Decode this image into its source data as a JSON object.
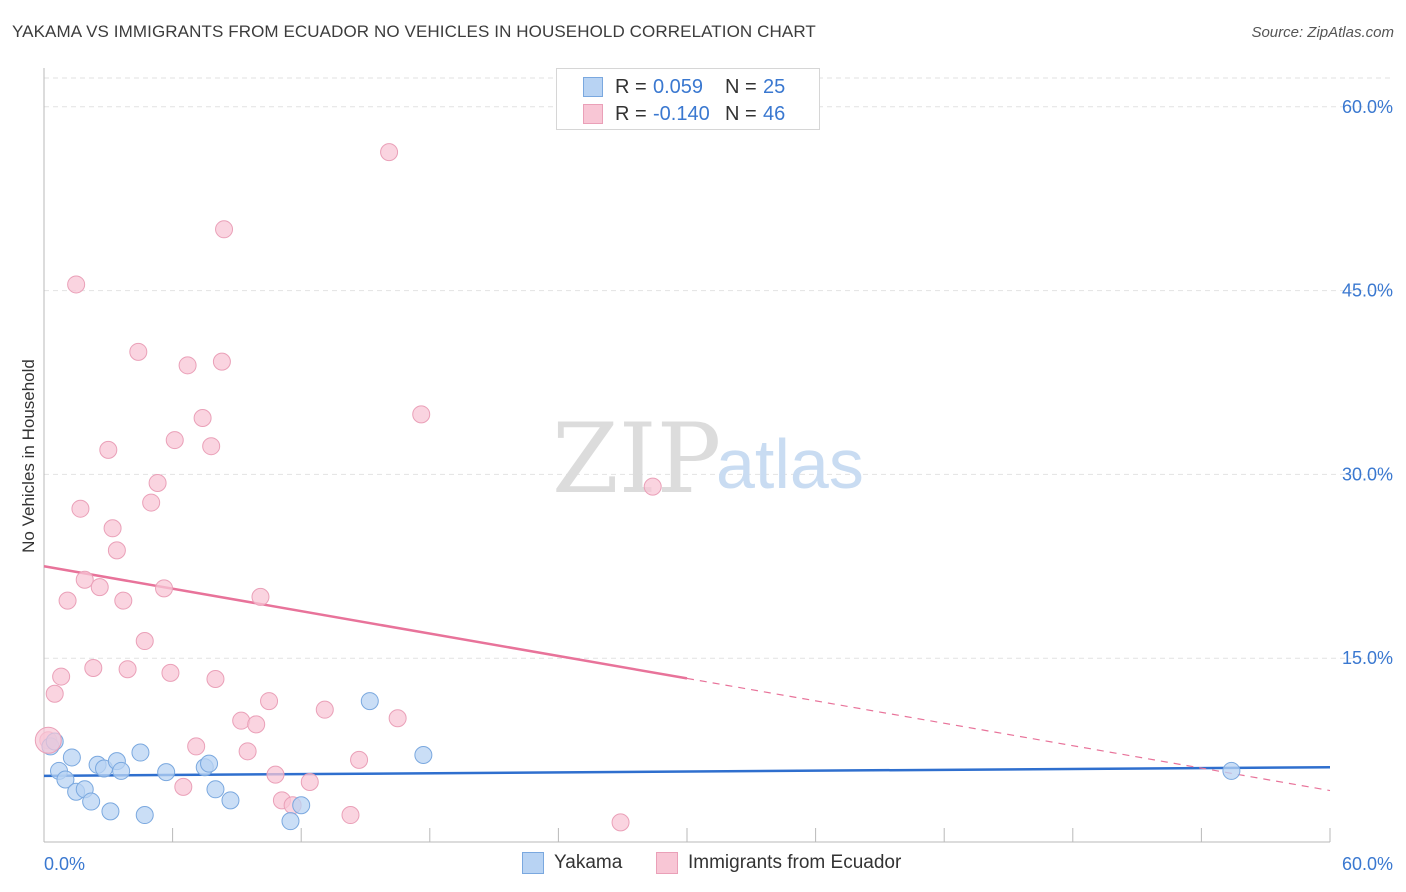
{
  "title": "YAKAMA VS IMMIGRANTS FROM ECUADOR NO VEHICLES IN HOUSEHOLD CORRELATION CHART",
  "source": "Source: ZipAtlas.com",
  "watermark": {
    "zip": "ZIP",
    "atlas": "atlas"
  },
  "colors": {
    "blue_fill": "#b8d3f3",
    "blue_stroke": "#7aa8df",
    "blue_line": "#2f6fce",
    "pink_fill": "#f8c6d5",
    "pink_stroke": "#eaa0b8",
    "pink_line": "#e8739a",
    "grid": "#e2e2e2",
    "tick_text": "#3a78d0"
  },
  "legend": {
    "rows": [
      {
        "r_label": "R =",
        "r_value": "0.059",
        "n_label": "N =",
        "n_value": "25"
      },
      {
        "r_label": "R =",
        "r_value": "-0.140",
        "n_label": "N =",
        "n_value": "46"
      }
    ]
  },
  "bottom_legend": {
    "series1": "Yakama",
    "series2": "Immigrants from Ecuador"
  },
  "chart_data": {
    "type": "scatter",
    "title": "YAKAMA VS IMMIGRANTS FROM ECUADOR NO VEHICLES IN HOUSEHOLD CORRELATION CHART",
    "xlabel": "",
    "ylabel": "No Vehicles in Household",
    "xlim": [
      0,
      60
    ],
    "ylim": [
      0,
      63
    ],
    "x_tick_labels": [
      "0.0%",
      "60.0%"
    ],
    "y_ticks": [
      15,
      30,
      45,
      60
    ],
    "y_tick_labels": [
      "15.0%",
      "30.0%",
      "45.0%",
      "60.0%"
    ],
    "series": [
      {
        "name": "Yakama",
        "color": "#b8d3f3",
        "r": 0.059,
        "n": 25,
        "points": [
          [
            0.3,
            7.8
          ],
          [
            0.5,
            8.2
          ],
          [
            0.7,
            5.8
          ],
          [
            1.0,
            5.1
          ],
          [
            1.3,
            6.9
          ],
          [
            1.5,
            4.1
          ],
          [
            1.9,
            4.3
          ],
          [
            2.2,
            3.3
          ],
          [
            2.5,
            6.3
          ],
          [
            2.8,
            6.0
          ],
          [
            3.1,
            2.5
          ],
          [
            3.4,
            6.6
          ],
          [
            3.6,
            5.8
          ],
          [
            4.5,
            7.3
          ],
          [
            4.7,
            2.2
          ],
          [
            5.7,
            5.7
          ],
          [
            7.5,
            6.1
          ],
          [
            7.7,
            6.4
          ],
          [
            8.0,
            4.3
          ],
          [
            8.7,
            3.4
          ],
          [
            11.5,
            1.7
          ],
          [
            12.0,
            3.0
          ],
          [
            15.2,
            11.5
          ],
          [
            17.7,
            7.1
          ],
          [
            55.4,
            5.8
          ]
        ],
        "trend": {
          "x": [
            0,
            60
          ],
          "y": [
            5.4,
            6.1
          ],
          "dashed_from": null
        }
      },
      {
        "name": "Immigrants from Ecuador",
        "color": "#f8c6d5",
        "r": -0.14,
        "n": 46,
        "points": [
          [
            0.2,
            8.3
          ],
          [
            0.5,
            12.1
          ],
          [
            0.8,
            13.5
          ],
          [
            1.1,
            19.7
          ],
          [
            1.5,
            45.5
          ],
          [
            1.7,
            27.2
          ],
          [
            1.9,
            21.4
          ],
          [
            2.3,
            14.2
          ],
          [
            2.6,
            20.8
          ],
          [
            3.0,
            32.0
          ],
          [
            3.2,
            25.6
          ],
          [
            3.4,
            23.8
          ],
          [
            3.7,
            19.7
          ],
          [
            3.9,
            14.1
          ],
          [
            4.4,
            40.0
          ],
          [
            4.7,
            16.4
          ],
          [
            5.0,
            27.7
          ],
          [
            5.3,
            29.3
          ],
          [
            5.6,
            20.7
          ],
          [
            5.9,
            13.8
          ],
          [
            6.1,
            32.8
          ],
          [
            6.5,
            4.5
          ],
          [
            6.7,
            38.9
          ],
          [
            7.1,
            7.8
          ],
          [
            7.4,
            34.6
          ],
          [
            7.8,
            32.3
          ],
          [
            8.0,
            13.3
          ],
          [
            8.3,
            39.2
          ],
          [
            8.4,
            50.0
          ],
          [
            9.2,
            9.9
          ],
          [
            9.5,
            7.4
          ],
          [
            9.9,
            9.6
          ],
          [
            10.1,
            20.0
          ],
          [
            10.5,
            11.5
          ],
          [
            10.8,
            5.5
          ],
          [
            11.1,
            3.4
          ],
          [
            11.6,
            3.0
          ],
          [
            12.4,
            4.9
          ],
          [
            13.1,
            10.8
          ],
          [
            14.3,
            2.2
          ],
          [
            14.7,
            6.7
          ],
          [
            16.1,
            56.3
          ],
          [
            16.5,
            10.1
          ],
          [
            17.6,
            34.9
          ],
          [
            26.9,
            1.6
          ],
          [
            28.4,
            29.0
          ]
        ],
        "trend": {
          "x": [
            0,
            60
          ],
          "y": [
            22.5,
            4.2
          ],
          "solid_until_x": 30
        }
      }
    ]
  }
}
